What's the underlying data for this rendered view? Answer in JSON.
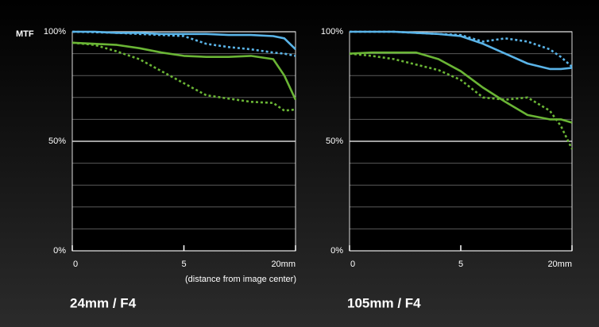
{
  "chart_data": [
    {
      "type": "line",
      "title": "24mm / F4",
      "ylabel": "MTF",
      "xlabel": "(distance from image center)",
      "x": [
        0,
        1,
        2,
        3,
        4,
        5,
        8,
        11,
        14,
        17,
        18.5,
        20
      ],
      "xscale": "piecewise",
      "xlim": [
        0,
        20
      ],
      "xticks": [
        0,
        5,
        {
          "value": 20,
          "label": "20mm"
        }
      ],
      "ylim": [
        0,
        100
      ],
      "yticks": [
        {
          "value": 0,
          "label": "0%"
        },
        {
          "value": 50,
          "label": "50%"
        },
        {
          "value": 100,
          "label": "100%"
        }
      ],
      "minor_yticks": [
        10,
        20,
        30,
        40,
        60,
        70,
        80,
        90
      ],
      "series": [
        {
          "color": "#5ab4e8",
          "dash": "solid",
          "values": [
            100,
            100,
            99.5,
            99.5,
            99,
            99,
            99,
            98.5,
            98.5,
            98,
            97,
            92
          ]
        },
        {
          "color": "#5ab4e8",
          "dash": "dotted",
          "values": [
            100,
            99.8,
            99.5,
            99,
            98.5,
            98,
            94.5,
            93,
            92,
            90.5,
            90,
            89
          ]
        },
        {
          "color": "#6ab535",
          "dash": "solid",
          "values": [
            95,
            94.5,
            94,
            92.5,
            90.5,
            89,
            88.5,
            88.5,
            89,
            87.5,
            80,
            69
          ]
        },
        {
          "color": "#6ab535",
          "dash": "dotted",
          "values": [
            95,
            94,
            91,
            87.5,
            82,
            76.5,
            71,
            69.5,
            68,
            67.5,
            64,
            64.5
          ]
        }
      ]
    },
    {
      "type": "line",
      "title": "105mm / F4",
      "x": [
        0,
        1,
        2,
        3,
        4,
        5,
        8,
        11,
        14,
        17,
        18.5,
        20
      ],
      "xscale": "piecewise",
      "xlim": [
        0,
        20
      ],
      "xticks": [
        0,
        5,
        {
          "value": 20,
          "label": "20mm"
        }
      ],
      "ylim": [
        0,
        100
      ],
      "yticks": [
        {
          "value": 0,
          "label": "0%"
        },
        {
          "value": 50,
          "label": "50%"
        },
        {
          "value": 100,
          "label": "100%"
        }
      ],
      "minor_yticks": [
        10,
        20,
        30,
        40,
        60,
        70,
        80,
        90
      ],
      "series": [
        {
          "color": "#5ab4e8",
          "dash": "solid",
          "values": [
            100,
            100,
            100,
            99.5,
            99,
            98,
            94.5,
            90,
            85.5,
            83,
            83,
            83.5
          ]
        },
        {
          "color": "#5ab4e8",
          "dash": "dotted",
          "values": [
            100,
            100,
            100,
            99.5,
            99,
            98.5,
            95.5,
            97,
            95.5,
            92,
            88.5,
            84
          ]
        },
        {
          "color": "#6ab535",
          "dash": "solid",
          "values": [
            90,
            90.5,
            90.5,
            90.5,
            87.5,
            82,
            74.5,
            68,
            62,
            60,
            60,
            58.5
          ]
        },
        {
          "color": "#6ab535",
          "dash": "dotted",
          "values": [
            90,
            89,
            87.5,
            85,
            82.5,
            78,
            70,
            69,
            70,
            64,
            57,
            46.5
          ]
        }
      ]
    }
  ]
}
